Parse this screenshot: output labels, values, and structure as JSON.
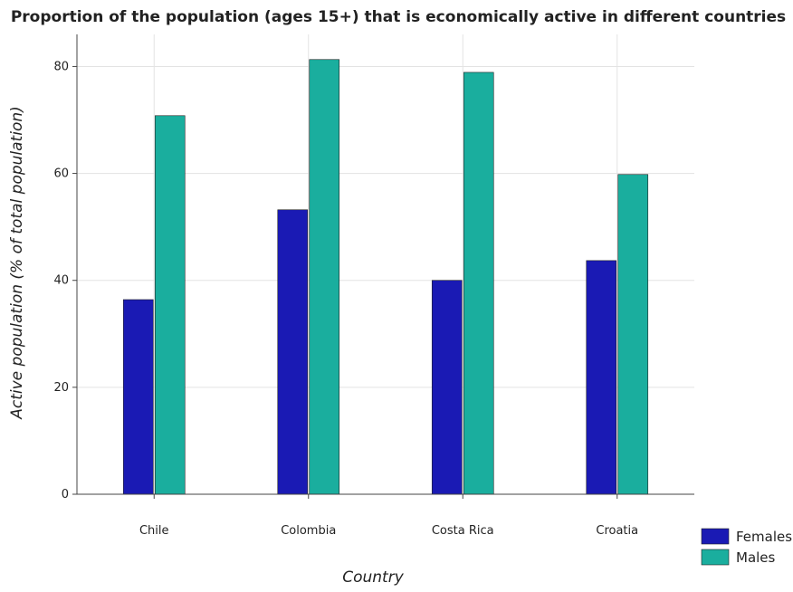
{
  "chart_data": {
    "type": "bar",
    "title": "Proportion of the population (ages 15+) that is economically active in different countries",
    "xlabel": "Country",
    "ylabel": "Active population (% of total population)",
    "categories": [
      "Chile",
      "Colombia",
      "Costa Rica",
      "Croatia"
    ],
    "series": [
      {
        "name": "Females",
        "values": [
          36.4,
          53.2,
          40.0,
          43.7
        ],
        "color": "#1a1ab4"
      },
      {
        "name": "Males",
        "values": [
          70.8,
          81.3,
          78.9,
          59.8
        ],
        "color": "#1aae9e"
      }
    ],
    "y_ticks": [
      0,
      20,
      40,
      60,
      80
    ],
    "ylim": [
      0,
      86
    ],
    "grid": true,
    "legend_position": "bottom-right"
  }
}
